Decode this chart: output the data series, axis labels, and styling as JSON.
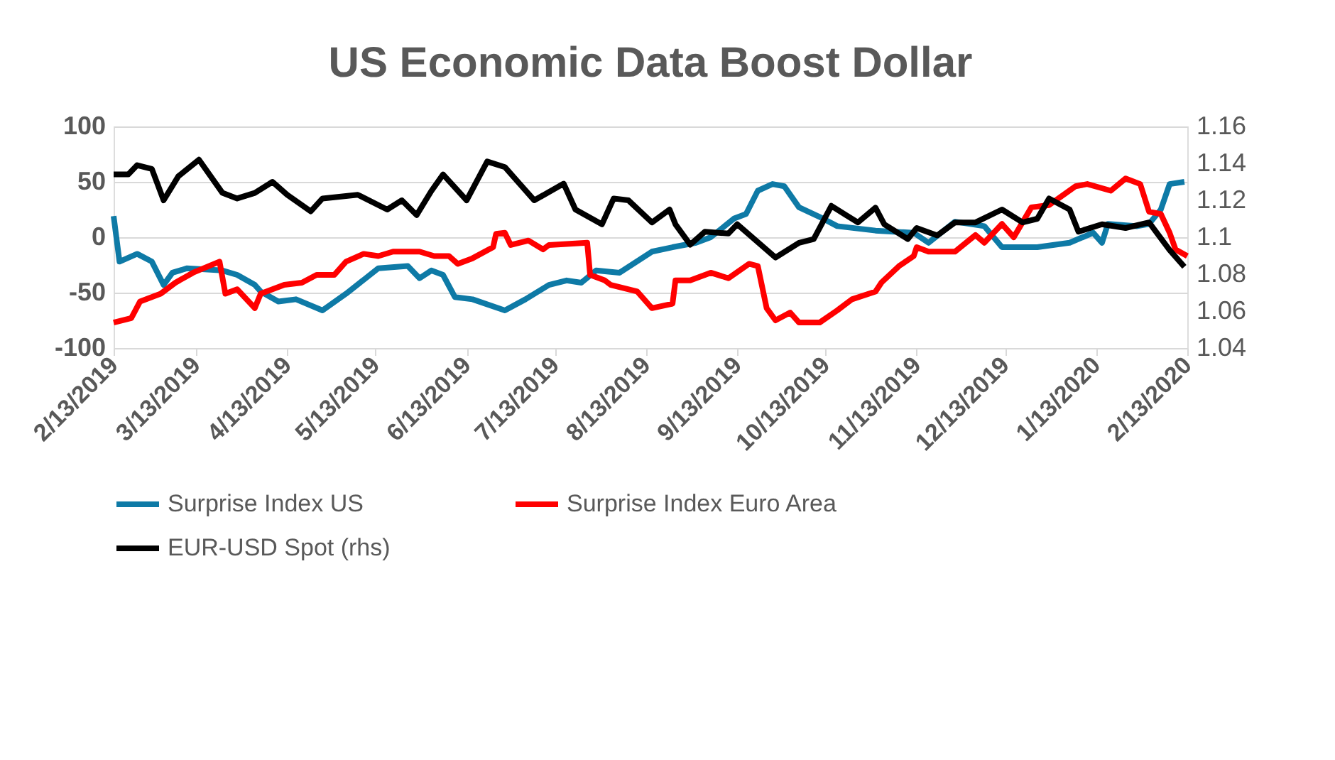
{
  "chart_data": {
    "type": "line",
    "title": "US Economic Data Boost Dollar",
    "xlim": [
      "2019-02-13",
      "2020-02-13"
    ],
    "xticks": [
      {
        "value": "2019-02-13",
        "label": "2/13/2019"
      },
      {
        "value": "2019-03-13",
        "label": "3/13/2019"
      },
      {
        "value": "2019-04-13",
        "label": "4/13/2019"
      },
      {
        "value": "2019-05-13",
        "label": "5/13/2019"
      },
      {
        "value": "2019-06-13",
        "label": "6/13/2019"
      },
      {
        "value": "2019-07-13",
        "label": "7/13/2019"
      },
      {
        "value": "2019-08-13",
        "label": "8/13/2019"
      },
      {
        "value": "2019-09-13",
        "label": "9/13/2019"
      },
      {
        "value": "2019-10-13",
        "label": "10/13/2019"
      },
      {
        "value": "2019-11-13",
        "label": "11/13/2019"
      },
      {
        "value": "2019-12-13",
        "label": "12/13/2019"
      },
      {
        "value": "2020-01-13",
        "label": "1/13/2020"
      },
      {
        "value": "2020-02-13",
        "label": "2/13/2020"
      }
    ],
    "ylim": [
      -100,
      100
    ],
    "yticks": [
      -100,
      -50,
      0,
      50,
      100
    ],
    "y2lim": [
      1.04,
      1.16
    ],
    "y2ticks": [
      1.04,
      1.06,
      1.08,
      1.1,
      1.12,
      1.14,
      1.16
    ],
    "grid": "y",
    "legend": "bottom",
    "marker": "none",
    "line_style": "solid",
    "series": [
      {
        "name": "Surprise Index US",
        "color": "#0e7aa6",
        "x": [
          "2019-02-13",
          "2019-02-15",
          "2019-02-21",
          "2019-02-26",
          "2019-03-02",
          "2019-03-05",
          "2019-03-10",
          "2019-03-22",
          "2019-03-27",
          "2019-04-02",
          "2019-04-04",
          "2019-04-10",
          "2019-04-16",
          "2019-04-25",
          "2019-05-03",
          "2019-05-14",
          "2019-05-24",
          "2019-05-28",
          "2019-06-01",
          "2019-06-05",
          "2019-06-09",
          "2019-06-15",
          "2019-06-26",
          "2019-07-03",
          "2019-07-11",
          "2019-07-17",
          "2019-07-22",
          "2019-07-27",
          "2019-08-04",
          "2019-08-15",
          "2019-08-22",
          "2019-08-30",
          "2019-09-04",
          "2019-09-12",
          "2019-09-16",
          "2019-09-20",
          "2019-09-25",
          "2019-09-29",
          "2019-10-04",
          "2019-10-12",
          "2019-10-17",
          "2019-10-30",
          "2019-11-12",
          "2019-11-17",
          "2019-11-26",
          "2019-12-06",
          "2019-12-12",
          "2019-12-24",
          "2020-01-04",
          "2020-01-12",
          "2020-01-15",
          "2020-01-17",
          "2020-01-27",
          "2020-01-31",
          "2020-02-04",
          "2020-02-07",
          "2020-02-12"
        ],
        "values": [
          19,
          -22,
          -15,
          -22,
          -43,
          -32,
          -28,
          -30,
          -34,
          -43,
          -49,
          -58,
          -56,
          -66,
          -51,
          -28,
          -26,
          -37,
          -30,
          -34,
          -54,
          -56,
          -66,
          -56,
          -43,
          -39,
          -41,
          -30,
          -32,
          -13,
          -9,
          -5,
          0,
          17,
          21,
          42,
          48,
          46,
          27,
          17,
          10,
          6,
          4,
          -5,
          14,
          10,
          -9,
          -9,
          -5,
          4,
          -5,
          12,
          10,
          12,
          25,
          48,
          50
        ]
      },
      {
        "name": "Surprise Index Euro Area",
        "color": "#ff0000",
        "x": [
          "2019-02-13",
          "2019-02-19",
          "2019-02-22",
          "2019-03-01",
          "2019-03-06",
          "2019-03-12",
          "2019-03-21",
          "2019-03-23",
          "2019-03-27",
          "2019-04-02",
          "2019-04-04",
          "2019-04-12",
          "2019-04-18",
          "2019-04-23",
          "2019-04-29",
          "2019-05-03",
          "2019-05-09",
          "2019-05-14",
          "2019-05-19",
          "2019-05-28",
          "2019-06-02",
          "2019-06-07",
          "2019-06-10",
          "2019-06-15",
          "2019-06-22",
          "2019-06-23",
          "2019-06-26",
          "2019-06-28",
          "2019-07-04",
          "2019-07-09",
          "2019-07-11",
          "2019-07-24",
          "2019-07-25",
          "2019-07-30",
          "2019-08-01",
          "2019-08-10",
          "2019-08-15",
          "2019-08-22",
          "2019-08-23",
          "2019-08-28",
          "2019-09-04",
          "2019-09-10",
          "2019-09-17",
          "2019-09-20",
          "2019-09-23",
          "2019-09-26",
          "2019-10-01",
          "2019-10-04",
          "2019-10-11",
          "2019-10-17",
          "2019-10-22",
          "2019-10-30",
          "2019-11-01",
          "2019-11-07",
          "2019-11-12",
          "2019-11-13",
          "2019-11-17",
          "2019-11-26",
          "2019-12-03",
          "2019-12-06",
          "2019-12-12",
          "2019-12-16",
          "2019-12-22",
          "2019-12-28",
          "2020-01-06",
          "2020-01-10",
          "2020-01-18",
          "2020-01-23",
          "2020-01-28",
          "2020-01-31",
          "2020-02-04",
          "2020-02-07",
          "2020-02-09",
          "2020-02-13"
        ],
        "values": [
          -77,
          -73,
          -58,
          -51,
          -41,
          -32,
          -22,
          -51,
          -47,
          -64,
          -51,
          -43,
          -41,
          -34,
          -34,
          -22,
          -15,
          -17,
          -13,
          -13,
          -17,
          -17,
          -24,
          -19,
          -9,
          3,
          4,
          -7,
          -3,
          -11,
          -7,
          -5,
          -34,
          -39,
          -43,
          -49,
          -64,
          -60,
          -39,
          -39,
          -32,
          -37,
          -24,
          -26,
          -64,
          -75,
          -68,
          -77,
          -77,
          -66,
          -56,
          -49,
          -41,
          -26,
          -17,
          -9,
          -13,
          -13,
          2,
          -5,
          12,
          0,
          27,
          29,
          46,
          48,
          42,
          53,
          48,
          23,
          21,
          4,
          -11,
          -17
        ]
      },
      {
        "name": "EUR-USD Spot (rhs)",
        "color": "#000000",
        "axis": "y2",
        "x": [
          "2019-02-13",
          "2019-02-18",
          "2019-02-21",
          "2019-02-26",
          "2019-03-02",
          "2019-03-07",
          "2019-03-14",
          "2019-03-22",
          "2019-03-27",
          "2019-04-02",
          "2019-04-08",
          "2019-04-13",
          "2019-04-21",
          "2019-04-25",
          "2019-05-07",
          "2019-05-17",
          "2019-05-22",
          "2019-05-27",
          "2019-06-01",
          "2019-06-05",
          "2019-06-13",
          "2019-06-20",
          "2019-06-26",
          "2019-07-01",
          "2019-07-06",
          "2019-07-16",
          "2019-07-20",
          "2019-07-29",
          "2019-08-02",
          "2019-08-07",
          "2019-08-15",
          "2019-08-21",
          "2019-08-23",
          "2019-08-28",
          "2019-09-02",
          "2019-09-10",
          "2019-09-13",
          "2019-09-26",
          "2019-10-04",
          "2019-10-09",
          "2019-10-15",
          "2019-10-20",
          "2019-10-24",
          "2019-10-30",
          "2019-11-02",
          "2019-11-10",
          "2019-11-13",
          "2019-11-20",
          "2019-11-26",
          "2019-12-03",
          "2019-12-12",
          "2019-12-19",
          "2019-12-24",
          "2019-12-28",
          "2020-01-04",
          "2020-01-07",
          "2020-01-15",
          "2020-01-23",
          "2020-01-31",
          "2020-02-07",
          "2020-02-12"
        ],
        "values": [
          1.134,
          1.134,
          1.139,
          1.137,
          1.12,
          1.133,
          1.142,
          1.124,
          1.121,
          1.124,
          1.13,
          1.123,
          1.114,
          1.121,
          1.123,
          1.115,
          1.12,
          1.112,
          1.125,
          1.134,
          1.12,
          1.141,
          1.138,
          1.129,
          1.12,
          1.129,
          1.115,
          1.107,
          1.121,
          1.12,
          1.108,
          1.115,
          1.107,
          1.096,
          1.103,
          1.102,
          1.107,
          1.089,
          1.097,
          1.099,
          1.117,
          1.112,
          1.108,
          1.116,
          1.107,
          1.099,
          1.105,
          1.101,
          1.108,
          1.108,
          1.115,
          1.108,
          1.11,
          1.121,
          1.115,
          1.103,
          1.107,
          1.105,
          1.108,
          1.093,
          1.084
        ]
      }
    ]
  }
}
